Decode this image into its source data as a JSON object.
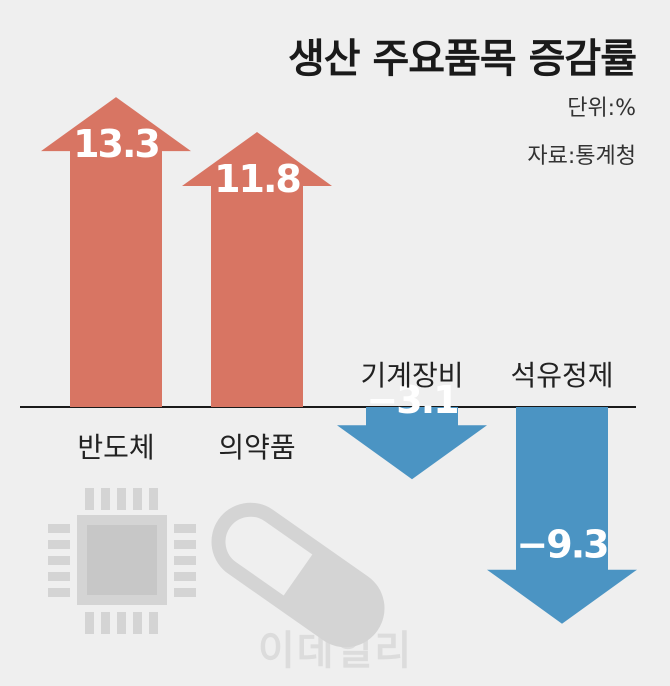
{
  "header": {
    "title": "생산 주요품목 증감률",
    "unit": "단위:%",
    "source": "자료:통계청"
  },
  "watermark": "이데일리",
  "colors": {
    "positive": "#d87563",
    "negative": "#4b94c3",
    "baseline": "#1a1a1a",
    "icon": "#d4d4d4"
  },
  "icons": [
    "chip-icon",
    "pill-icon"
  ],
  "chart_data": {
    "type": "bar",
    "title": "생산 주요품목 증감률",
    "categories": [
      "반도체",
      "의약품",
      "기계장비",
      "석유정제"
    ],
    "values": [
      13.3,
      11.8,
      -3.1,
      -9.3
    ],
    "value_labels": [
      "13.3",
      "11.8",
      "−3.1",
      "−9.3"
    ],
    "unit": "%",
    "ylim": [
      -10.5,
      14.5
    ],
    "grid": false,
    "legend": "none"
  }
}
